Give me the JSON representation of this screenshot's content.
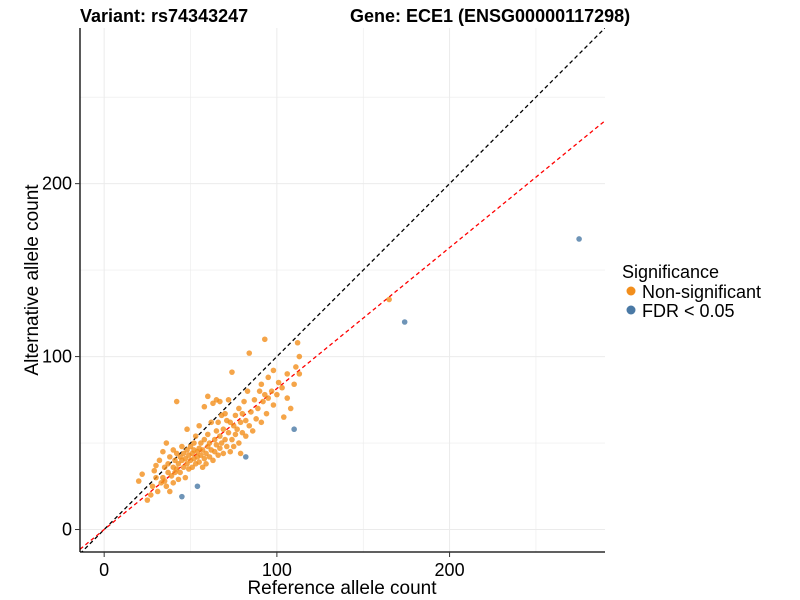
{
  "chart_data": {
    "type": "scatter",
    "title_left": "Variant: rs74343247",
    "title_right": "Gene: ECE1 (ENSG00000117298)",
    "xlabel": "Reference allele count",
    "ylabel": "Alternative allele count",
    "xlim": [
      -14,
      290
    ],
    "ylim": [
      -13,
      290
    ],
    "x_ticks": [
      0,
      100,
      200
    ],
    "y_ticks": [
      0,
      100,
      200
    ],
    "grid": true,
    "reference_lines": [
      {
        "slope": 1.0,
        "intercept": 0,
        "color": "#000000",
        "style": "dashed"
      },
      {
        "slope": 0.815,
        "intercept": 0,
        "color": "#ff0000",
        "style": "dashed"
      }
    ],
    "legend": {
      "title": "Significance",
      "placement": "right",
      "entries": [
        {
          "label": "Non-significant",
          "color": "#f28e1c"
        },
        {
          "label": "FDR < 0.05",
          "color": "#4a79a5"
        }
      ]
    },
    "series": [
      {
        "name": "Non-significant",
        "color": "#f28e1c",
        "points": [
          [
            20,
            28
          ],
          [
            22,
            32
          ],
          [
            25,
            17
          ],
          [
            27,
            20
          ],
          [
            28,
            25
          ],
          [
            29,
            34
          ],
          [
            30,
            37
          ],
          [
            30,
            30
          ],
          [
            31,
            22
          ],
          [
            32,
            40
          ],
          [
            33,
            27
          ],
          [
            34,
            45
          ],
          [
            34,
            30
          ],
          [
            35,
            36
          ],
          [
            35,
            28
          ],
          [
            36,
            50
          ],
          [
            36,
            25
          ],
          [
            37,
            38
          ],
          [
            37,
            33
          ],
          [
            38,
            42
          ],
          [
            38,
            22
          ],
          [
            39,
            31
          ],
          [
            40,
            46
          ],
          [
            40,
            36
          ],
          [
            40,
            27
          ],
          [
            41,
            40
          ],
          [
            41,
            33
          ],
          [
            42,
            74
          ],
          [
            42,
            44
          ],
          [
            42,
            35
          ],
          [
            43,
            38
          ],
          [
            43,
            29
          ],
          [
            44,
            42
          ],
          [
            44,
            33
          ],
          [
            45,
            48
          ],
          [
            45,
            40
          ],
          [
            46,
            36
          ],
          [
            46,
            44
          ],
          [
            47,
            41
          ],
          [
            47,
            30
          ],
          [
            48,
            58
          ],
          [
            48,
            46
          ],
          [
            48,
            38
          ],
          [
            49,
            43
          ],
          [
            49,
            35
          ],
          [
            50,
            40
          ],
          [
            50,
            48
          ],
          [
            51,
            44
          ],
          [
            51,
            36
          ],
          [
            52,
            46
          ],
          [
            52,
            41
          ],
          [
            52,
            50
          ],
          [
            53,
            38
          ],
          [
            53,
            54
          ],
          [
            54,
            42
          ],
          [
            54,
            45
          ],
          [
            55,
            47
          ],
          [
            55,
            39
          ],
          [
            55,
            60
          ],
          [
            56,
            43
          ],
          [
            56,
            50
          ],
          [
            57,
            36
          ],
          [
            57,
            46
          ],
          [
            58,
            41
          ],
          [
            58,
            52
          ],
          [
            58,
            71
          ],
          [
            59,
            44
          ],
          [
            59,
            38
          ],
          [
            60,
            48
          ],
          [
            60,
            77
          ],
          [
            60,
            55
          ],
          [
            61,
            42
          ],
          [
            61,
            50
          ],
          [
            62,
            46
          ],
          [
            62,
            62
          ],
          [
            63,
            40
          ],
          [
            63,
            73
          ],
          [
            64,
            52
          ],
          [
            64,
            45
          ],
          [
            65,
            57
          ],
          [
            65,
            49
          ],
          [
            65,
            75
          ],
          [
            66,
            43
          ],
          [
            66,
            62
          ],
          [
            67,
            54
          ],
          [
            67,
            47
          ],
          [
            67,
            74
          ],
          [
            68,
            50
          ],
          [
            68,
            66
          ],
          [
            69,
            58
          ],
          [
            69,
            44
          ],
          [
            70,
            67
          ],
          [
            70,
            52
          ],
          [
            71,
            48
          ],
          [
            71,
            63
          ],
          [
            72,
            56
          ],
          [
            72,
            75
          ],
          [
            73,
            45
          ],
          [
            73,
            62
          ],
          [
            74,
            52
          ],
          [
            74,
            91
          ],
          [
            75,
            60
          ],
          [
            75,
            48
          ],
          [
            76,
            66
          ],
          [
            76,
            55
          ],
          [
            77,
            58
          ],
          [
            78,
            70
          ],
          [
            78,
            50
          ],
          [
            79,
            62
          ],
          [
            79,
            44
          ],
          [
            80,
            56
          ],
          [
            80,
            67
          ],
          [
            81,
            74
          ],
          [
            82,
            63
          ],
          [
            82,
            54
          ],
          [
            83,
            80
          ],
          [
            84,
            60
          ],
          [
            84,
            102
          ],
          [
            85,
            68
          ],
          [
            86,
            57
          ],
          [
            87,
            75
          ],
          [
            88,
            64
          ],
          [
            89,
            70
          ],
          [
            90,
            80
          ],
          [
            91,
            84
          ],
          [
            91,
            62
          ],
          [
            92,
            74
          ],
          [
            93,
            78
          ],
          [
            93,
            110
          ],
          [
            94,
            67
          ],
          [
            95,
            76
          ],
          [
            95,
            88
          ],
          [
            97,
            80
          ],
          [
            98,
            72
          ],
          [
            98,
            92
          ],
          [
            100,
            78
          ],
          [
            101,
            85
          ],
          [
            103,
            82
          ],
          [
            104,
            65
          ],
          [
            106,
            76
          ],
          [
            106,
            90
          ],
          [
            108,
            70
          ],
          [
            110,
            84
          ],
          [
            111,
            94
          ],
          [
            112,
            108
          ],
          [
            113,
            90
          ],
          [
            113,
            100
          ],
          [
            165,
            133
          ]
        ]
      },
      {
        "name": "FDR < 0.05",
        "color": "#4a79a5",
        "points": [
          [
            45,
            19
          ],
          [
            54,
            25
          ],
          [
            82,
            42
          ],
          [
            110,
            58
          ],
          [
            174,
            120
          ],
          [
            275,
            168
          ]
        ]
      }
    ]
  }
}
